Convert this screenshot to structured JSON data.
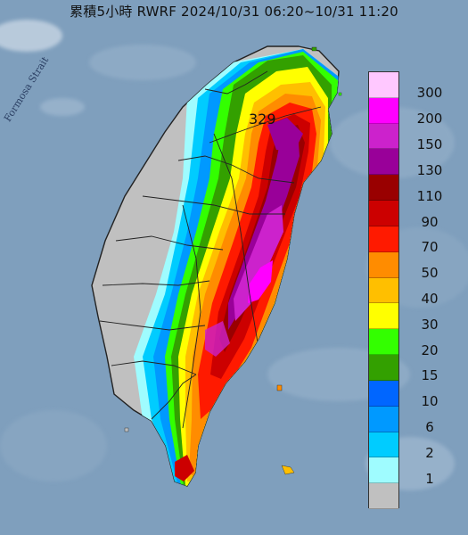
{
  "title": "累積5小時 RWRF 2024/10/31 06:20~10/31 11:20",
  "strait_label": "Formosa Strait",
  "max_value": "329",
  "legend": {
    "items": [
      {
        "label": "300",
        "color": "#ffc8ff"
      },
      {
        "label": "200",
        "color": "#ff00ff"
      },
      {
        "label": "150",
        "color": "#cc22cc"
      },
      {
        "label": "130",
        "color": "#990099"
      },
      {
        "label": "110",
        "color": "#990000"
      },
      {
        "label": "90",
        "color": "#cc0000"
      },
      {
        "label": "70",
        "color": "#ff1a00"
      },
      {
        "label": "50",
        "color": "#ff8c00"
      },
      {
        "label": "40",
        "color": "#ffbf00"
      },
      {
        "label": "30",
        "color": "#ffff00"
      },
      {
        "label": "20",
        "color": "#33ff00"
      },
      {
        "label": "15",
        "color": "#33a000"
      },
      {
        "label": "10",
        "color": "#0066ff"
      },
      {
        "label": "6",
        "color": "#0099ff"
      },
      {
        "label": "2",
        "color": "#00ccff"
      },
      {
        "label": "1",
        "color": "#9ffcff"
      },
      {
        "label": "",
        "color": "#c0c0c0"
      }
    ]
  }
}
